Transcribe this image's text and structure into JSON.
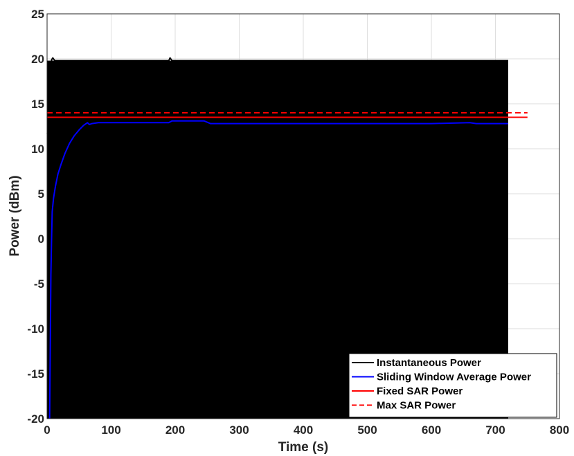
{
  "chart_data": {
    "type": "line",
    "xlabel": "Time (s)",
    "ylabel": "Power (dBm)",
    "xlim": [
      0,
      800
    ],
    "ylim": [
      -20,
      25
    ],
    "xticks": [
      0,
      100,
      200,
      300,
      400,
      500,
      600,
      700,
      800
    ],
    "yticks": [
      25,
      20,
      15,
      10,
      5,
      0,
      -5,
      -10,
      -15,
      -20
    ],
    "grid": true,
    "legend_position": "bottom-right",
    "series": [
      {
        "name": "Instantaneous Power",
        "color": "#000000",
        "style": "solid",
        "fill_band": {
          "x_start": 0,
          "x_end": 720,
          "y_low": -20,
          "y_high": 19.8
        },
        "x": [
          0,
          2,
          5,
          7,
          9,
          12,
          50,
          100,
          150,
          190,
          192,
          195,
          250,
          300,
          400,
          500,
          600,
          700,
          720
        ],
        "values": [
          11.8,
          11.6,
          11.7,
          19.9,
          20.1,
          19.8,
          19.8,
          19.8,
          19.8,
          19.8,
          20.1,
          19.8,
          19.8,
          19.8,
          19.8,
          19.8,
          19.8,
          19.8,
          19.8
        ]
      },
      {
        "name": "Sliding Window Average Power",
        "color": "#0000ff",
        "style": "solid",
        "x": [
          4,
          5,
          6,
          7,
          8,
          10,
          13,
          17,
          22,
          28,
          35,
          42,
          50,
          57,
          63,
          66,
          70,
          80,
          100,
          150,
          190,
          195,
          200,
          245,
          255,
          300,
          400,
          500,
          600,
          660,
          670,
          720
        ],
        "values": [
          -20,
          -12,
          -4,
          0,
          3,
          4.5,
          5.8,
          7.2,
          8.3,
          9.5,
          10.6,
          11.4,
          12.1,
          12.6,
          12.9,
          12.7,
          12.8,
          12.9,
          12.9,
          12.9,
          12.9,
          13.1,
          13.1,
          13.1,
          12.8,
          12.8,
          12.8,
          12.8,
          12.8,
          12.9,
          12.8,
          12.8
        ]
      },
      {
        "name": "Fixed SAR Power",
        "color": "#ff0000",
        "style": "solid",
        "x": [
          0,
          750
        ],
        "values": [
          13.5,
          13.5
        ]
      },
      {
        "name": "Max SAR Power",
        "color": "#ff0000",
        "style": "dashed",
        "x": [
          0,
          750
        ],
        "values": [
          14,
          14
        ]
      }
    ]
  }
}
